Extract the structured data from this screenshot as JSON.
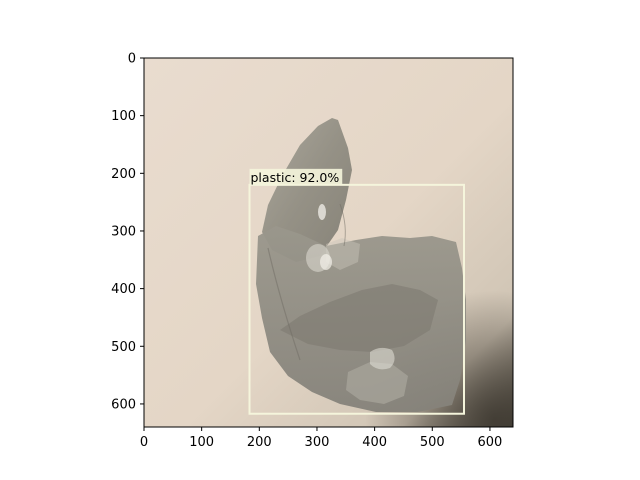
{
  "image": {
    "description_free": true,
    "width_units": 640,
    "height_units": 640,
    "background_color": "#e6d8c9",
    "object_color": "#8f8b80"
  },
  "axes": {
    "xlim": [
      0,
      640
    ],
    "ylim": [
      640,
      0
    ],
    "x_ticks": [
      0,
      100,
      200,
      300,
      400,
      500,
      600
    ],
    "y_ticks": [
      0,
      100,
      200,
      300,
      400,
      500,
      600
    ],
    "x_tick_labels": [
      "0",
      "100",
      "200",
      "300",
      "400",
      "500",
      "600"
    ],
    "y_tick_labels": [
      "0",
      "100",
      "200",
      "300",
      "400",
      "500",
      "600"
    ]
  },
  "detection": {
    "label": "plastic: 92.0%",
    "class": "plastic",
    "score": "92.0%",
    "box": {
      "x_min": 183,
      "y_min": 220,
      "x_max": 555,
      "y_max": 617
    },
    "box_color": "#f5f5dc",
    "label_bg_color": "#f5f5dc"
  }
}
